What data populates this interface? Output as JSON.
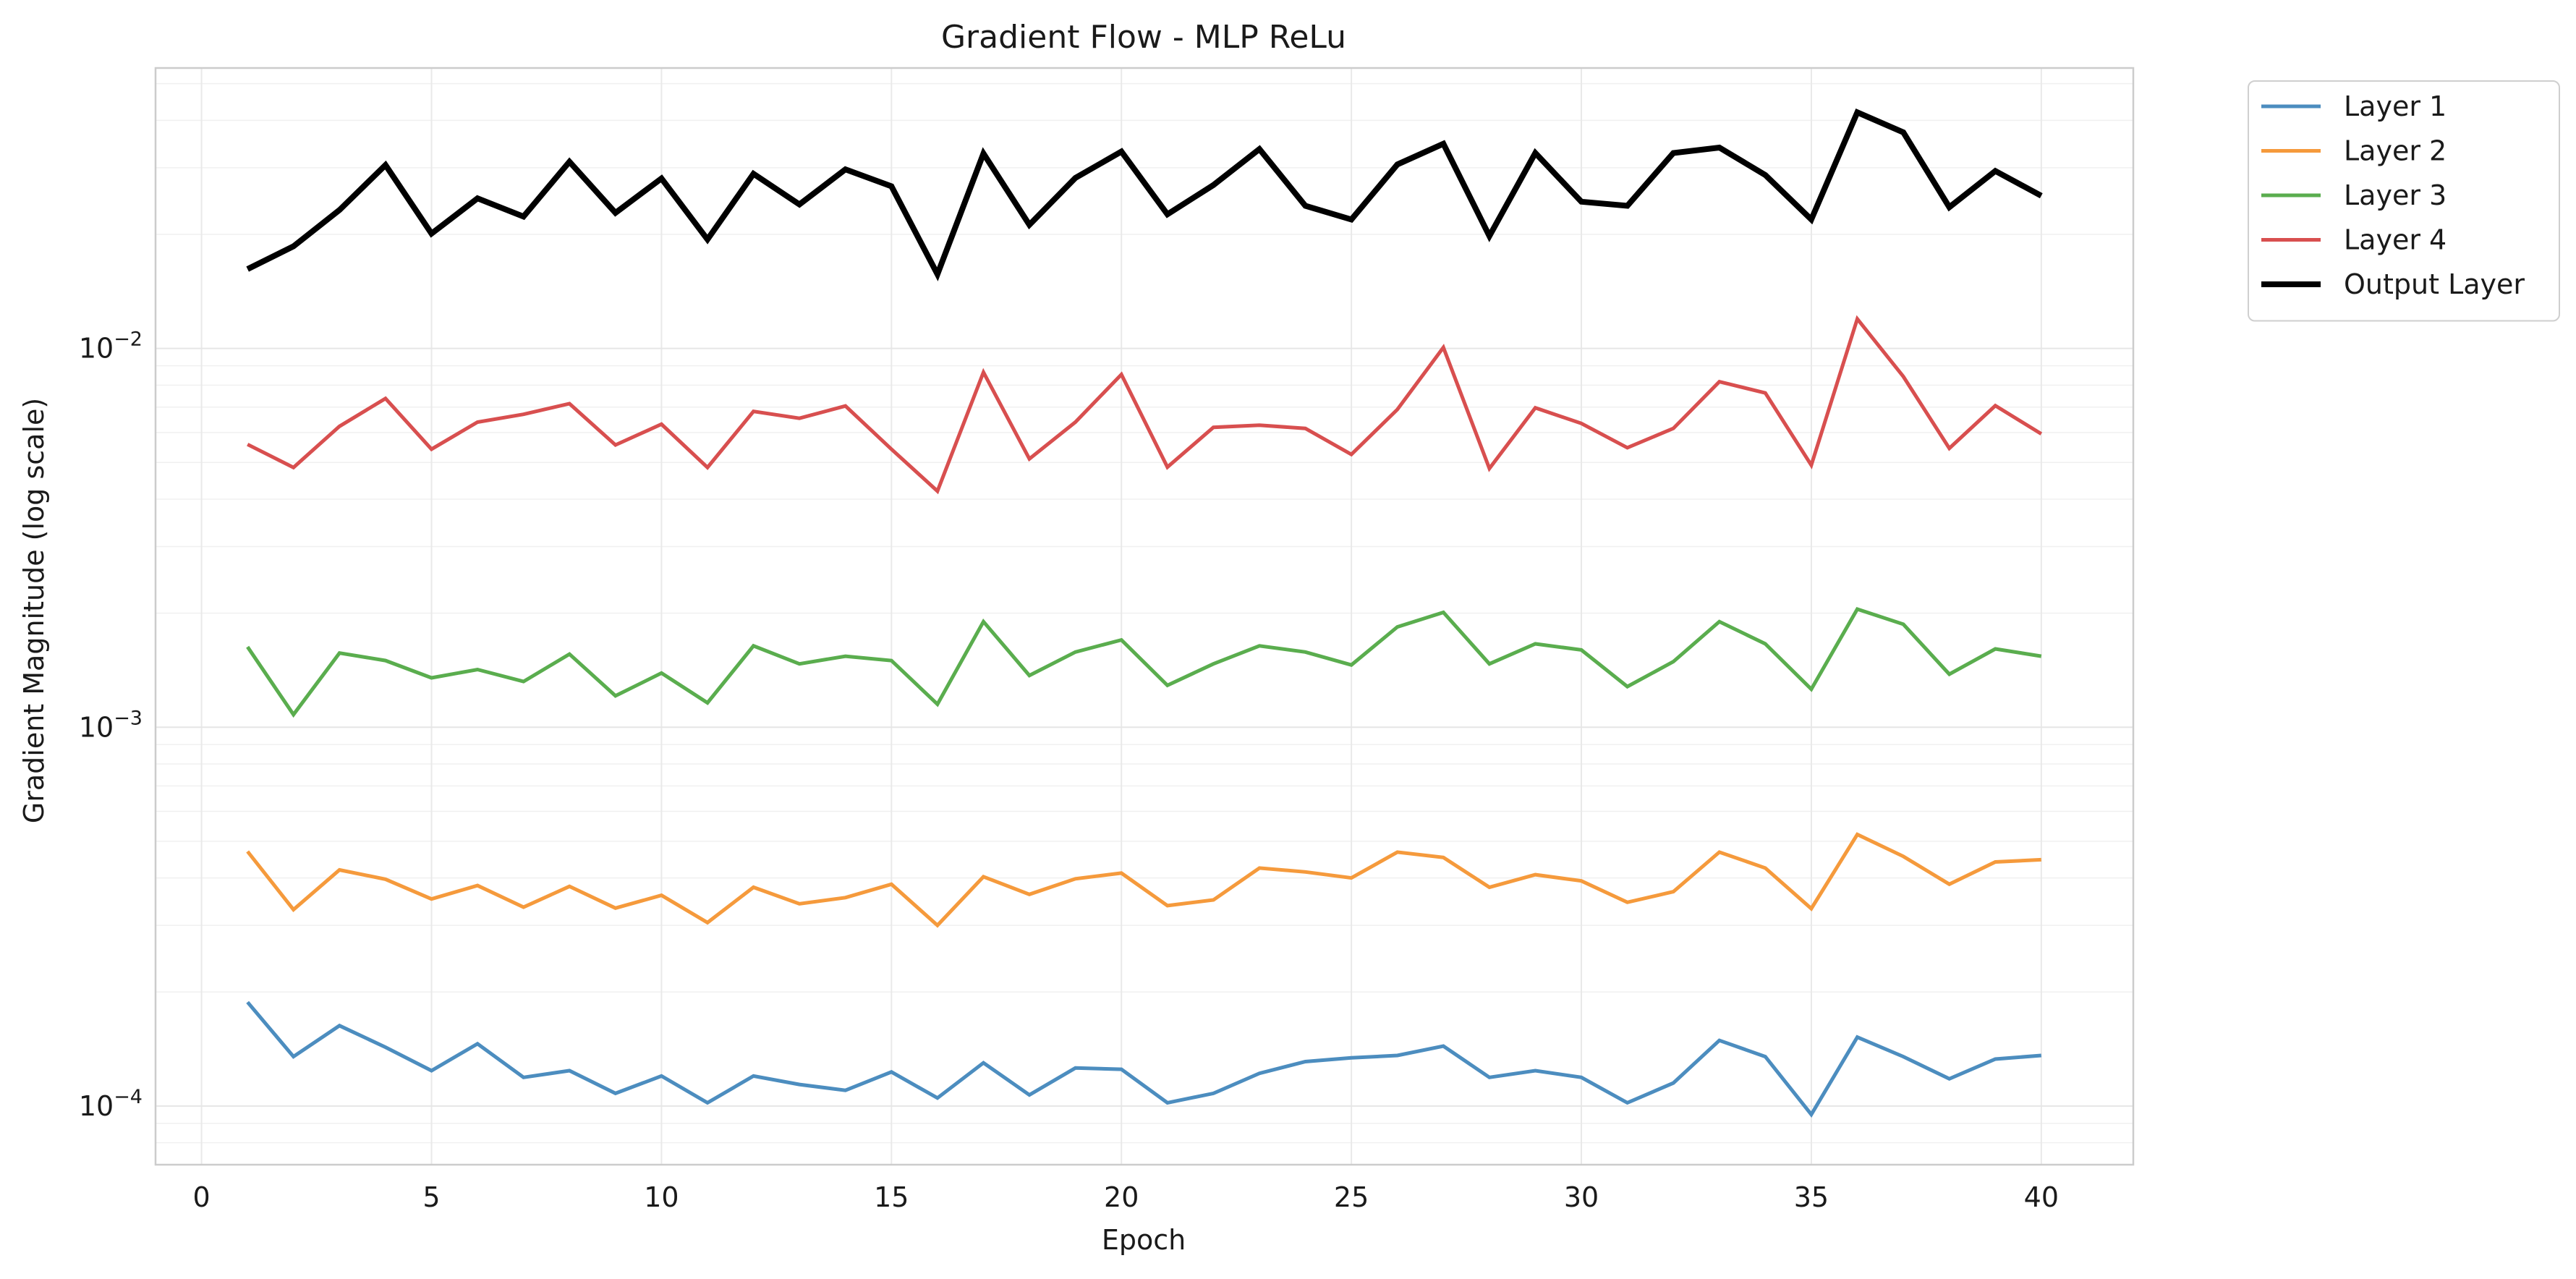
{
  "chart_data": {
    "type": "line",
    "title": "Gradient Flow - MLP ReLu",
    "xlabel": "Epoch",
    "ylabel": "Gradient Magnitude (log scale)",
    "yscale": "log",
    "xlim": [
      -1,
      42
    ],
    "ylim": [
      7e-05,
      0.055
    ],
    "xticks": [
      0,
      5,
      10,
      15,
      20,
      25,
      30,
      35,
      40
    ],
    "yticks": [
      {
        "value": 0.0001,
        "base": "10",
        "exp": "−4"
      },
      {
        "value": 0.001,
        "base": "10",
        "exp": "−3"
      },
      {
        "value": 0.01,
        "base": "10",
        "exp": "−2"
      }
    ],
    "grid": true,
    "legend_position": "outside-top-right",
    "x": [
      1,
      2,
      3,
      4,
      5,
      6,
      7,
      8,
      9,
      10,
      11,
      12,
      13,
      14,
      15,
      16,
      17,
      18,
      19,
      20,
      21,
      22,
      23,
      24,
      25,
      26,
      27,
      28,
      29,
      30,
      31,
      32,
      33,
      34,
      35,
      36,
      37,
      38,
      39,
      40
    ],
    "series": [
      {
        "name": "Layer 1",
        "color": "#4c8dbf",
        "width": 5,
        "values": [
          0.000188,
          0.000135,
          0.000163,
          0.000143,
          0.000124,
          0.000146,
          0.000119,
          0.000124,
          0.000108,
          0.00012,
          0.000102,
          0.00012,
          0.000114,
          0.00011,
          0.000123,
          0.000105,
          0.00013,
          0.000107,
          0.000126,
          0.000125,
          0.000102,
          0.000108,
          0.000122,
          0.000131,
          0.000134,
          0.000136,
          0.000144,
          0.000119,
          0.000124,
          0.000119,
          0.000102,
          0.000115,
          0.000149,
          0.000135,
          9.5e-05,
          0.000152,
          0.000135,
          0.000118,
          0.000133,
          0.000136
        ]
      },
      {
        "name": "Layer 2",
        "color": "#f59a3c",
        "width": 5,
        "values": [
          0.00047,
          0.00033,
          0.00042,
          0.000397,
          0.000352,
          0.000382,
          0.000335,
          0.00038,
          0.000333,
          0.00036,
          0.000305,
          0.000378,
          0.000342,
          0.000355,
          0.000385,
          0.0003,
          0.000403,
          0.000362,
          0.000398,
          0.000412,
          0.000338,
          0.00035,
          0.000425,
          0.000415,
          0.0004,
          0.000468,
          0.000453,
          0.000378,
          0.000408,
          0.000393,
          0.000345,
          0.000368,
          0.000468,
          0.000425,
          0.000332,
          0.000521,
          0.000456,
          0.000385,
          0.000441,
          0.000447
        ]
      },
      {
        "name": "Layer 3",
        "color": "#5aad4e",
        "width": 5,
        "values": [
          0.00163,
          0.00108,
          0.00157,
          0.0015,
          0.00135,
          0.00142,
          0.00132,
          0.00156,
          0.00121,
          0.00139,
          0.00116,
          0.00164,
          0.00147,
          0.00154,
          0.0015,
          0.00115,
          0.0019,
          0.00137,
          0.00158,
          0.0017,
          0.00129,
          0.00147,
          0.00164,
          0.00158,
          0.00146,
          0.00184,
          0.00201,
          0.00147,
          0.00166,
          0.0016,
          0.00128,
          0.00149,
          0.0019,
          0.00166,
          0.00126,
          0.00205,
          0.00187,
          0.00138,
          0.00161,
          0.00154
        ]
      },
      {
        "name": "Layer 4",
        "color": "#d84f4f",
        "width": 5,
        "values": [
          0.00558,
          0.00485,
          0.00623,
          0.00738,
          0.00542,
          0.00639,
          0.0067,
          0.00715,
          0.00556,
          0.00631,
          0.00485,
          0.00682,
          0.00654,
          0.00705,
          0.00542,
          0.0042,
          0.00865,
          0.00511,
          0.00639,
          0.00854,
          0.00486,
          0.00619,
          0.00627,
          0.00615,
          0.00525,
          0.0069,
          0.01006,
          0.00482,
          0.00697,
          0.00634,
          0.00547,
          0.00615,
          0.00817,
          0.00763,
          0.00492,
          0.01197,
          0.00843,
          0.00545,
          0.00706,
          0.00595
        ]
      },
      {
        "name": "Output Layer",
        "color": "#000000",
        "width": 8,
        "values": [
          0.0162,
          0.0186,
          0.0232,
          0.0305,
          0.0201,
          0.0249,
          0.0223,
          0.0311,
          0.0228,
          0.0281,
          0.0194,
          0.0289,
          0.024,
          0.0297,
          0.0268,
          0.0157,
          0.0327,
          0.0212,
          0.0282,
          0.0331,
          0.0226,
          0.027,
          0.0336,
          0.0238,
          0.0219,
          0.0306,
          0.0347,
          0.0198,
          0.0328,
          0.0244,
          0.0238,
          0.0328,
          0.0339,
          0.0287,
          0.0219,
          0.042,
          0.0372,
          0.0236,
          0.0294,
          0.0253
        ]
      }
    ]
  }
}
